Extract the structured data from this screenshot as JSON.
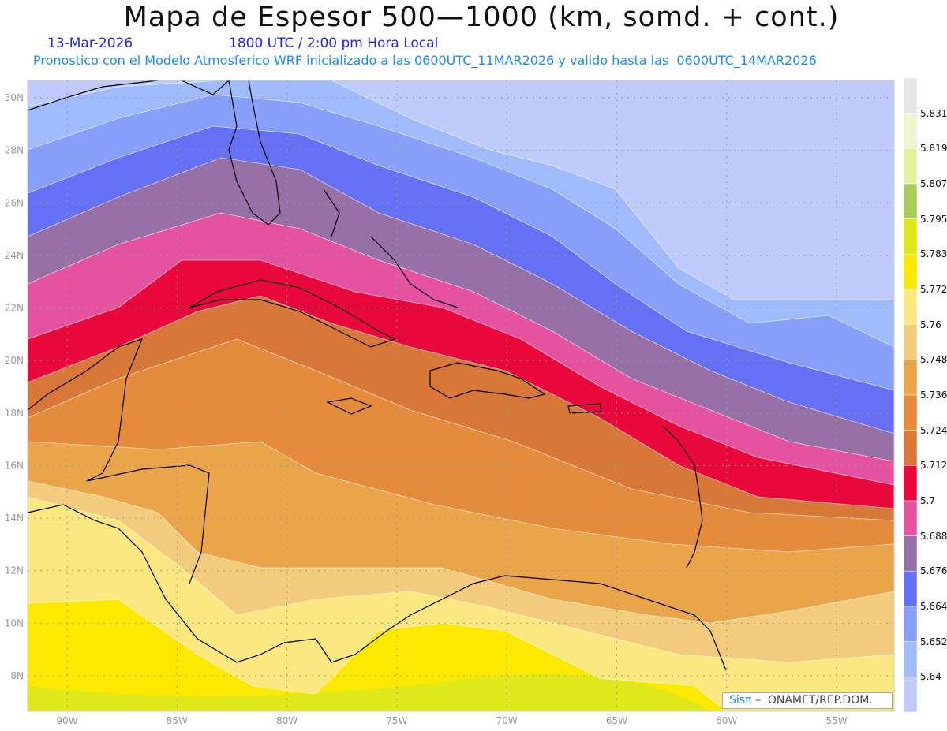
{
  "header": {
    "title": "Mapa de Espesor 500—1000 (km, somd. + cont.)",
    "date": "13-Mar-2026",
    "time": "1800 UTC / 2:00 pm Hora Local",
    "description": "Pronostico con el Modelo Atmosferico WRF inicializado a las 0600UTC_11MAR2026 y valido hasta las  0600UTC_14MAR2026"
  },
  "axes": {
    "lon_ticks": [
      "90W",
      "85W",
      "80W",
      "75W",
      "70W",
      "65W",
      "60W",
      "55W"
    ],
    "lat_ticks": [
      "8N",
      "10N",
      "12N",
      "14N",
      "16N",
      "18N",
      "20N",
      "22N",
      "24N",
      "26N",
      "28N",
      "30N"
    ]
  },
  "colorbar": {
    "levels": [
      "5.64",
      "5.652",
      "5.664",
      "5.676",
      "5.688",
      "5.7",
      "5.712",
      "5.724",
      "5.736",
      "5.748",
      "5.76",
      "5.772",
      "5.783",
      "5.795",
      "5.807",
      "5.819",
      "5.831"
    ],
    "colors": [
      "#bfcbfc",
      "#9fbbfc",
      "#889ffa",
      "#6670f5",
      "#9870a8",
      "#e452a0",
      "#e8083c",
      "#d87838",
      "#e48c3c",
      "#eaa44a",
      "#f2cc7c",
      "#fce880",
      "#fce800",
      "#dfe81a",
      "#a8cc60",
      "#e4f0a0",
      "#eef4d0",
      "#e6e6e6"
    ]
  },
  "credit": {
    "brand": "Sisπ",
    "text": " –  ONAMET/REP.DOM."
  }
}
